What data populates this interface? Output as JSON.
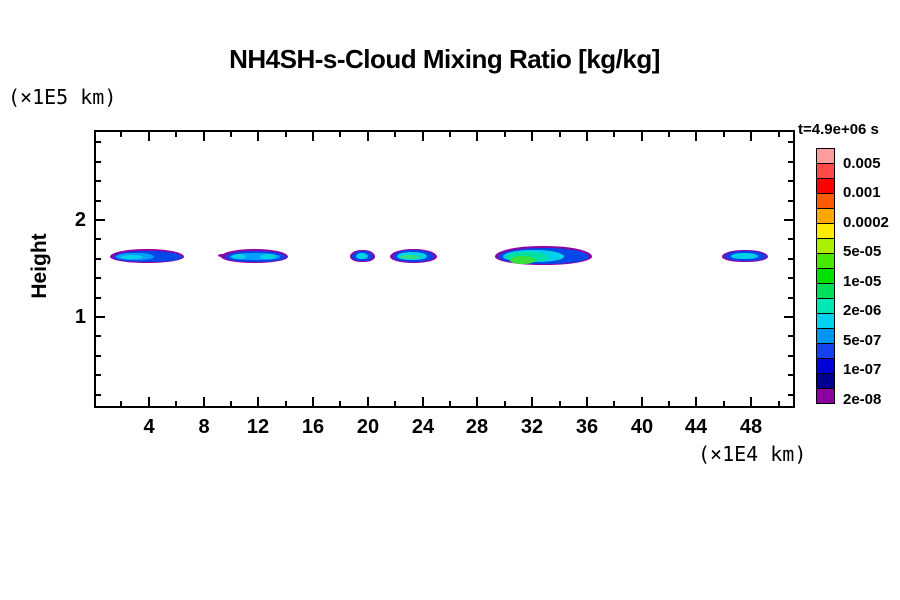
{
  "title": "NH4SH-s-Cloud Mixing Ratio [kg/kg]",
  "axes": {
    "y_unit_label": "(×1E5 km)",
    "x_unit_label": "(×1E4 km)",
    "y_axis_title": "Height"
  },
  "colorbar": {
    "time_label": "t=4.9e+06 s",
    "tick_labels": [
      "0.005",
      "0.001",
      "0.0002",
      "5e-05",
      "1e-05",
      "2e-06",
      "5e-07",
      "1e-07",
      "2e-08"
    ],
    "cell_colors": [
      "#ff9c9c",
      "#ff4a4a",
      "#ff0000",
      "#ff5a00",
      "#ffa800",
      "#ffec00",
      "#aaf000",
      "#4ae800",
      "#00e000",
      "#00e05a",
      "#00e8b4",
      "#00d2f0",
      "#0096f0",
      "#1440f0",
      "#0000d8",
      "#000090",
      "#8c00a0"
    ]
  },
  "chart_data": {
    "type": "heatmap",
    "title": "NH4SH-s-Cloud Mixing Ratio [kg/kg]",
    "xlabel": "(×1E4 km)",
    "ylabel": "Height (×1E5 km)",
    "time_annotation": "t=4.9e+06 s",
    "legend_position": "right",
    "grid": false,
    "xlim": [
      0,
      51.2
    ],
    "ylim": [
      0.062,
      2.928
    ],
    "x_ticks_major": [
      4,
      8,
      12,
      16,
      20,
      24,
      28,
      32,
      36,
      40,
      44,
      48
    ],
    "x_ticks_minor": [
      2,
      6,
      10,
      14,
      18,
      22,
      26,
      30,
      34,
      38,
      42,
      46,
      50
    ],
    "y_ticks_major": [
      1,
      2
    ],
    "y_ticks_minor": [
      0.2,
      0.4,
      0.6,
      0.8,
      1.2,
      1.4,
      1.6,
      1.8,
      2.2,
      2.4,
      2.6,
      2.8
    ],
    "contour_levels": [
      "2e-08",
      "1e-07",
      "5e-07",
      "2e-06",
      "1e-05",
      "5e-05",
      "0.0002",
      "0.001",
      "0.005"
    ],
    "clouds": [
      {
        "name": "cloud-1",
        "layers": [
          {
            "color": "#9000a8",
            "x0": 1.15,
            "x1": 6.6,
            "y0": 1.556,
            "y1": 1.7
          },
          {
            "color": "#0048e8",
            "x0": 1.35,
            "x1": 6.4,
            "y0": 1.57,
            "y1": 1.686
          },
          {
            "color": "#00a0ff",
            "x0": 1.6,
            "x1": 4.4,
            "y0": 1.585,
            "y1": 1.665
          },
          {
            "color": "#00d0e8",
            "x0": 2.0,
            "x1": 3.6,
            "y0": 1.6,
            "y1": 1.645
          }
        ]
      },
      {
        "name": "cloud-2",
        "layers": [
          {
            "color": "#9000a8",
            "x0": 9.05,
            "x1": 9.8,
            "y0": 1.615,
            "y1": 1.655
          },
          {
            "color": "#9000a8",
            "x0": 9.3,
            "x1": 14.2,
            "y0": 1.556,
            "y1": 1.7
          },
          {
            "color": "#0048e8",
            "x0": 9.55,
            "x1": 14.0,
            "y0": 1.57,
            "y1": 1.686
          },
          {
            "color": "#00a0ff",
            "x0": 9.9,
            "x1": 13.6,
            "y0": 1.585,
            "y1": 1.665
          },
          {
            "color": "#00d0e8",
            "x0": 10.1,
            "x1": 11.1,
            "y0": 1.595,
            "y1": 1.65
          },
          {
            "color": "#00d0e8",
            "x0": 12.1,
            "x1": 13.3,
            "y0": 1.595,
            "y1": 1.655
          }
        ]
      },
      {
        "name": "cloud-3",
        "layers": [
          {
            "color": "#9000a8",
            "x0": 18.7,
            "x1": 20.5,
            "y0": 1.565,
            "y1": 1.695
          },
          {
            "color": "#0048e8",
            "x0": 18.85,
            "x1": 20.35,
            "y0": 1.578,
            "y1": 1.682
          },
          {
            "color": "#00d0e8",
            "x0": 19.15,
            "x1": 20.0,
            "y0": 1.595,
            "y1": 1.66
          }
        ]
      },
      {
        "name": "cloud-4",
        "layers": [
          {
            "color": "#9000a8",
            "x0": 21.62,
            "x1": 25.05,
            "y0": 1.556,
            "y1": 1.7
          },
          {
            "color": "#0048e8",
            "x0": 21.8,
            "x1": 24.85,
            "y0": 1.57,
            "y1": 1.688
          },
          {
            "color": "#00d0e8",
            "x0": 22.1,
            "x1": 24.3,
            "y0": 1.585,
            "y1": 1.67
          },
          {
            "color": "#30e080",
            "x0": 22.35,
            "x1": 23.75,
            "y0": 1.595,
            "y1": 1.645
          }
        ]
      },
      {
        "name": "cloud-5",
        "layers": [
          {
            "color": "#9000a8",
            "x0": 29.3,
            "x1": 36.4,
            "y0": 1.536,
            "y1": 1.732
          },
          {
            "color": "#0048e8",
            "x0": 29.5,
            "x1": 36.15,
            "y0": 1.55,
            "y1": 1.715
          },
          {
            "color": "#00d0e8",
            "x0": 29.85,
            "x1": 34.3,
            "y0": 1.565,
            "y1": 1.695
          },
          {
            "color": "#00e0a0",
            "x0": 30.1,
            "x1": 33.2,
            "y0": 1.565,
            "y1": 1.67
          },
          {
            "color": "#38e038",
            "x0": 30.35,
            "x1": 32.2,
            "y0": 1.545,
            "y1": 1.625
          }
        ]
      },
      {
        "name": "cloud-6",
        "layers": [
          {
            "color": "#9000a8",
            "x0": 45.87,
            "x1": 49.25,
            "y0": 1.565,
            "y1": 1.695
          },
          {
            "color": "#0048e8",
            "x0": 46.05,
            "x1": 49.05,
            "y0": 1.578,
            "y1": 1.685
          },
          {
            "color": "#00d0e8",
            "x0": 46.5,
            "x1": 48.5,
            "y0": 1.595,
            "y1": 1.66
          }
        ]
      }
    ]
  }
}
